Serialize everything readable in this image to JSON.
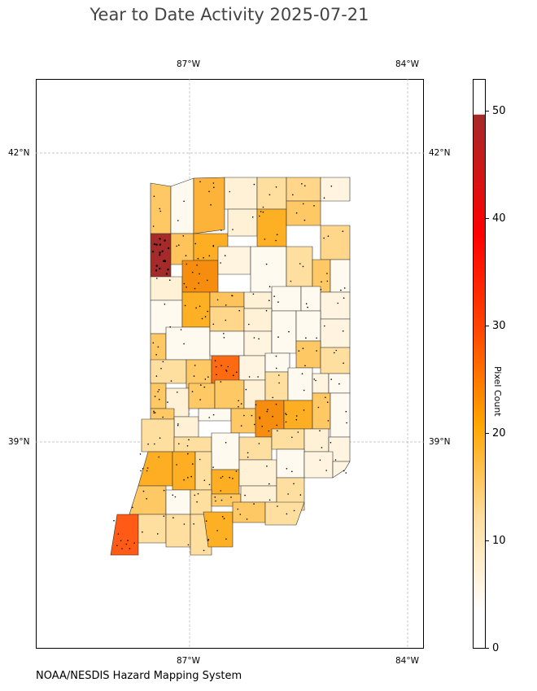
{
  "title": "Year to Date Activity 2025-07-21",
  "credit": "NOAA/NESDIS Hazard Mapping System",
  "map": {
    "region": "Indiana counties",
    "lon_ticks": [
      "87°W",
      "84°W"
    ],
    "lat_ticks": [
      "42°N",
      "39°N"
    ],
    "gridlines": true
  },
  "colorbar": {
    "label": "Pixel Count",
    "ticks": [
      "0",
      "10",
      "20",
      "30",
      "40",
      "50"
    ],
    "range": [
      0,
      53
    ],
    "colors": [
      "#ffffff",
      "#ffdfa0",
      "#ffa500",
      "#ff4500",
      "#ff0000",
      "#a52a2a"
    ]
  }
}
